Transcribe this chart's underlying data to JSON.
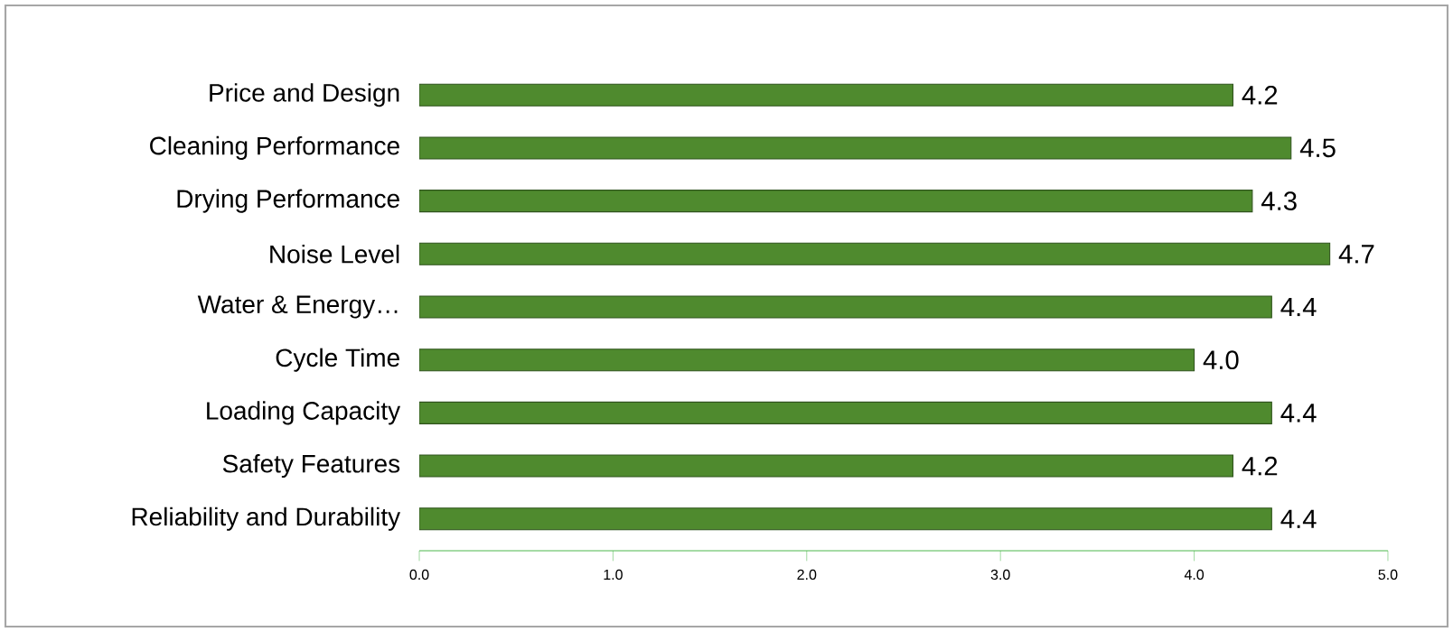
{
  "chart_data": {
    "type": "bar",
    "orientation": "horizontal",
    "categories": [
      "Price and Design",
      "Cleaning Performance",
      "Drying Performance",
      "Noise Level",
      "Water & Energy…",
      "Cycle Time",
      "Loading Capacity",
      "Safety Features",
      "Reliability and Durability"
    ],
    "values": [
      4.2,
      4.5,
      4.3,
      4.7,
      4.4,
      4.0,
      4.4,
      4.2,
      4.4
    ],
    "value_labels": [
      "4.2",
      "4.5",
      "4.3",
      "4.7",
      "4.4",
      "4.0",
      "4.4",
      "4.2",
      "4.4"
    ],
    "color": "#4f8a2e",
    "xlim": [
      0,
      5
    ],
    "xticks": [
      {
        "value": 0,
        "label": "0.0"
      },
      {
        "value": 1,
        "label": "1.0"
      },
      {
        "value": 2,
        "label": "2.0"
      },
      {
        "value": 3,
        "label": "3.0"
      },
      {
        "value": 4,
        "label": "4.0"
      },
      {
        "value": 5,
        "label": "5.0"
      }
    ],
    "tick_labels": "xy"
  }
}
